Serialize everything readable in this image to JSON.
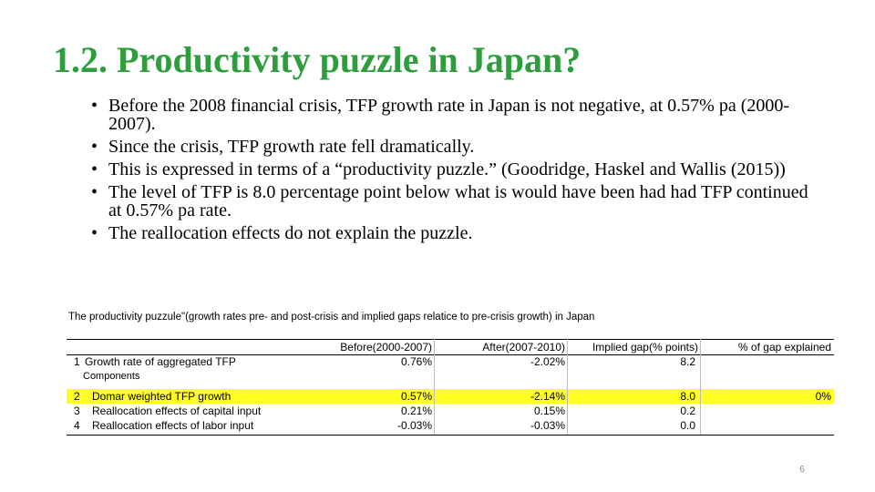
{
  "title": "1.2. Productivity puzzle in Japan?",
  "bullets": [
    "Before the 2008 financial crisis, TFP growth rate in Japan is not negative, at  0.57% pa (2000-2007).",
    "Since the crisis, TFP growth rate fell dramatically.",
    "This is expressed in terms of  a “productivity puzzle.” (Goodridge, Haskel and Wallis (2015))",
    "The level of TFP is 8.0 percentage point below what is would have been had had TFP continued at 0.57% pa rate.",
    "The reallocation effects do not explain the puzzle."
  ],
  "table": {
    "caption": "The productivity puzzule\"(growth rates pre- and post-crisis and implied gaps relatice to pre-crisis growth) in Japan",
    "headers": [
      "Before(2000-2007)",
      "After(2007-2010)",
      "Implied gap(% points)",
      "% of gap explained"
    ],
    "rows": [
      {
        "num": "1",
        "label": "Growth rate of aggregated TFP",
        "before": "0.76%",
        "after": "-2.02%",
        "gap": "8.2",
        "explained": ""
      },
      {
        "num": "",
        "label": "Components",
        "before": "",
        "after": "",
        "gap": "",
        "explained": ""
      },
      {
        "num": "2",
        "label": "Domar weighted TFP growth",
        "before": "0.57%",
        "after": "-2.14%",
        "gap": "8.0",
        "explained": "0%"
      },
      {
        "num": "3",
        "label": "Reallocation effects of capital input",
        "before": "0.21%",
        "after": "0.15%",
        "gap": "0.2",
        "explained": ""
      },
      {
        "num": "4",
        "label": "Reallocation effects of labor input",
        "before": "-0.03%",
        "after": "-0.03%",
        "gap": "0.0",
        "explained": ""
      }
    ],
    "highlight_color": "#ffff22"
  },
  "slide_number": "6",
  "colors": {
    "title": "#2e9e3c"
  }
}
